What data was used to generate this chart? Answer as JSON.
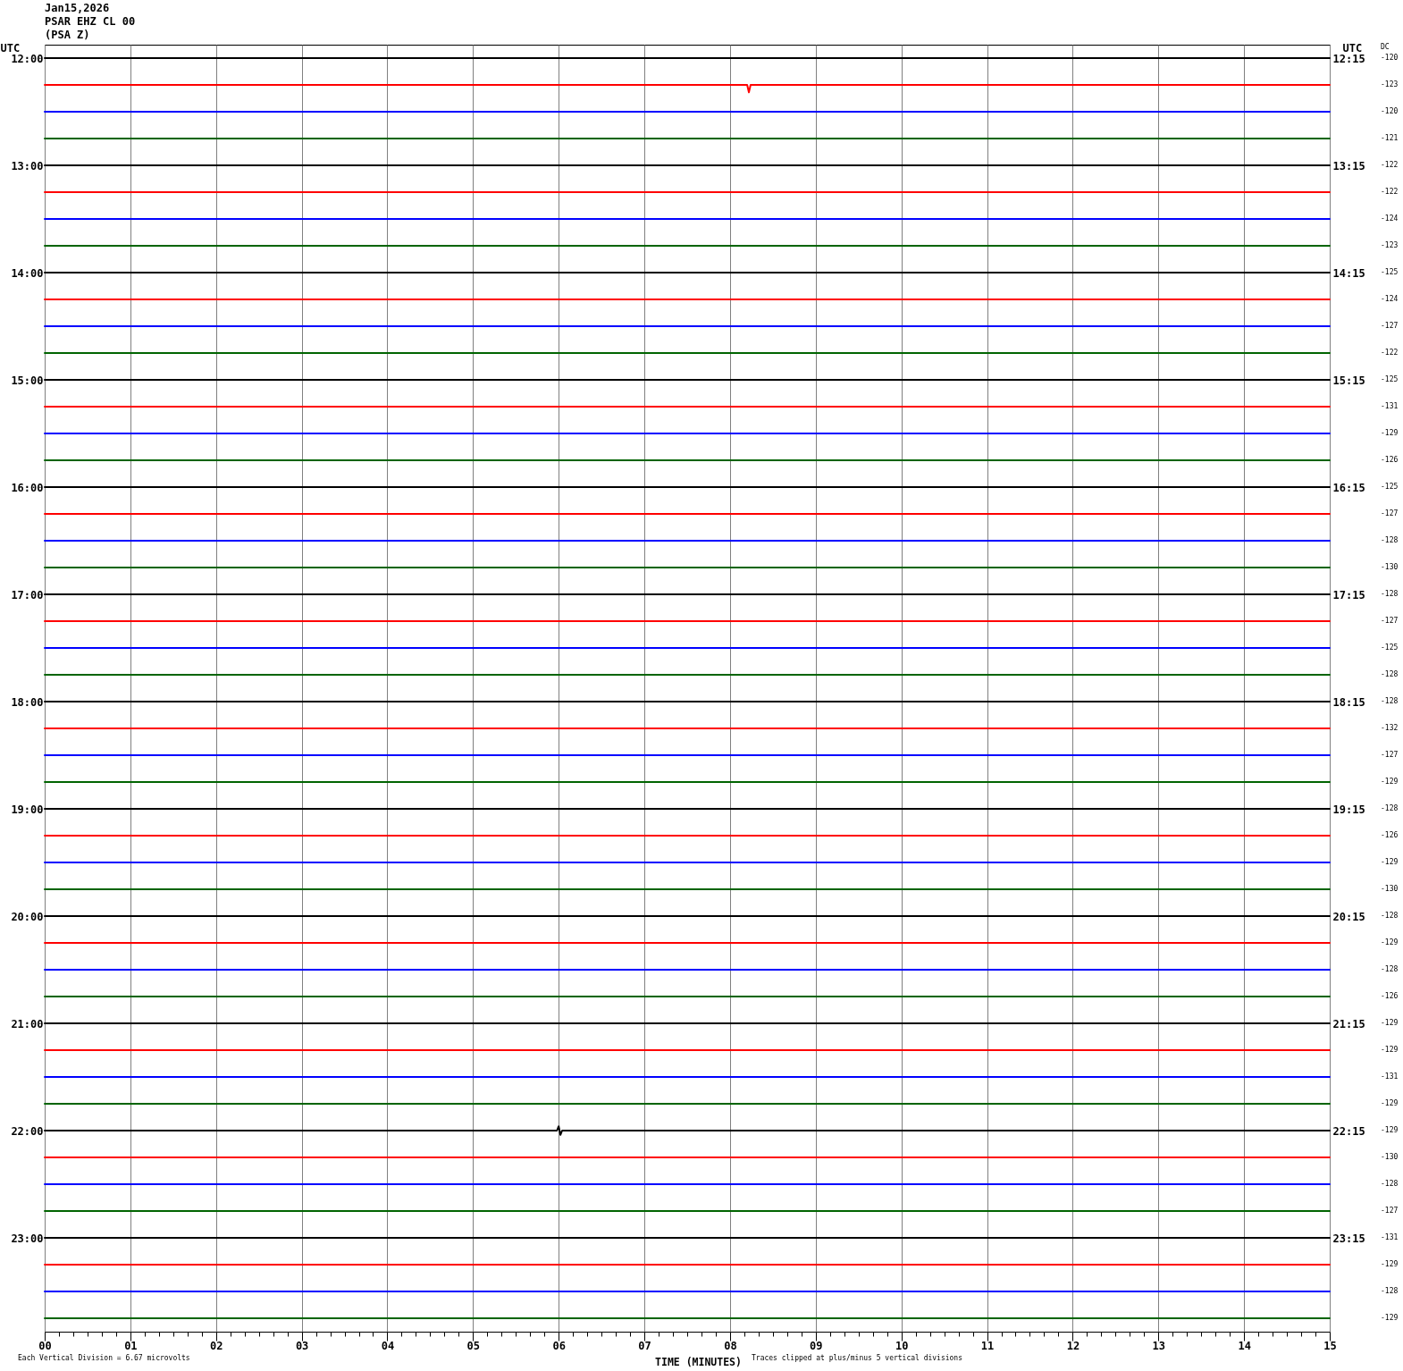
{
  "chart_data": {
    "type": "line",
    "title": "Jan15,2026",
    "subtitle": "PSAR EHZ CL 00\n(PSA Z)",
    "xlabel": "TIME (MINUTES)",
    "ylabel": "UTC",
    "y2label": "UTC",
    "annotations": [
      "DC",
      "-120",
      "-123",
      "-120",
      "-121",
      "-122",
      "-122",
      "-124",
      "-123",
      "-125",
      "-124",
      "-127",
      "-122",
      "-125",
      "-131",
      "-129",
      "-126",
      "-125",
      "-127",
      "-128",
      "-130",
      "-128",
      "-127",
      "-125",
      "-128",
      "-128",
      "-132",
      "-127",
      "-129",
      "-128",
      "-126",
      "-129",
      "-130",
      "-128",
      "-129",
      "-128",
      "-126",
      "-129",
      "-129",
      "-131",
      "-129",
      "-129",
      "-130",
      "-128",
      "-127",
      "-131",
      "-129",
      "-128",
      "-129",
      "Each Vertical Division = 6.67 microvolts",
      "Traces clipped at plus/minus 5 vertical divisions"
    ],
    "grid": "x",
    "x": [
      0,
      15
    ],
    "xlim": [
      0,
      15
    ],
    "xticks": [
      {
        "value": 0,
        "label": "00"
      },
      {
        "value": 0.1667,
        "label": null
      },
      {
        "value": 0.3333,
        "label": null
      },
      {
        "value": 0.5,
        "label": null
      },
      {
        "value": 0.6667,
        "label": null
      },
      {
        "value": 0.8333,
        "label": null
      },
      {
        "value": 1,
        "label": "01"
      },
      {
        "value": 1.1667,
        "label": null
      },
      {
        "value": 1.3333,
        "label": null
      },
      {
        "value": 1.5,
        "label": null
      },
      {
        "value": 1.6667,
        "label": null
      },
      {
        "value": 1.8333,
        "label": null
      },
      {
        "value": 2,
        "label": "02"
      },
      {
        "value": 2.1667,
        "label": null
      },
      {
        "value": 2.3333,
        "label": null
      },
      {
        "value": 2.5,
        "label": null
      },
      {
        "value": 2.6667,
        "label": null
      },
      {
        "value": 2.8333,
        "label": null
      },
      {
        "value": 3,
        "label": "03"
      },
      {
        "value": 3.1667,
        "label": null
      },
      {
        "value": 3.3333,
        "label": null
      },
      {
        "value": 3.5,
        "label": null
      },
      {
        "value": 3.6667,
        "label": null
      },
      {
        "value": 3.8333,
        "label": null
      },
      {
        "value": 4,
        "label": "04"
      },
      {
        "value": 4.1667,
        "label": null
      },
      {
        "value": 4.3333,
        "label": null
      },
      {
        "value": 4.5,
        "label": null
      },
      {
        "value": 4.6667,
        "label": null
      },
      {
        "value": 4.8333,
        "label": null
      },
      {
        "value": 5,
        "label": "05"
      },
      {
        "value": 5.1667,
        "label": null
      },
      {
        "value": 5.3333,
        "label": null
      },
      {
        "value": 5.5,
        "label": null
      },
      {
        "value": 5.6667,
        "label": null
      },
      {
        "value": 5.8333,
        "label": null
      },
      {
        "value": 6,
        "label": "06"
      },
      {
        "value": 6.1667,
        "label": null
      },
      {
        "value": 6.3333,
        "label": null
      },
      {
        "value": 6.5,
        "label": null
      },
      {
        "value": 6.6667,
        "label": null
      },
      {
        "value": 6.8333,
        "label": null
      },
      {
        "value": 7,
        "label": "07"
      },
      {
        "value": 7.1667,
        "label": null
      },
      {
        "value": 7.3333,
        "label": null
      },
      {
        "value": 7.5,
        "label": null
      },
      {
        "value": 7.6667,
        "label": null
      },
      {
        "value": 7.8333,
        "label": null
      },
      {
        "value": 8,
        "label": "08"
      },
      {
        "value": 8.1667,
        "label": null
      },
      {
        "value": 8.3333,
        "label": null
      },
      {
        "value": 8.5,
        "label": null
      },
      {
        "value": 8.6667,
        "label": null
      },
      {
        "value": 8.8333,
        "label": null
      },
      {
        "value": 9,
        "label": "09"
      },
      {
        "value": 9.1667,
        "label": null
      },
      {
        "value": 9.3333,
        "label": null
      },
      {
        "value": 9.5,
        "label": null
      },
      {
        "value": 9.6667,
        "label": null
      },
      {
        "value": 9.8333,
        "label": null
      },
      10,
      {
        "value": 10.1667,
        "label": null
      },
      {
        "value": 10.3333,
        "label": null
      },
      {
        "value": 10.5,
        "label": null
      },
      {
        "value": 10.6667,
        "label": null
      },
      {
        "value": 10.8333,
        "label": null
      },
      11,
      {
        "value": 11.1667,
        "label": null
      },
      {
        "value": 11.3333,
        "label": null
      },
      {
        "value": 11.5,
        "label": null
      },
      {
        "value": 11.6667,
        "label": null
      },
      {
        "value": 11.8333,
        "label": null
      },
      12,
      {
        "value": 12.1667,
        "label": null
      },
      {
        "value": 12.3333,
        "label": null
      },
      {
        "value": 12.5,
        "label": null
      },
      {
        "value": 12.6667,
        "label": null
      },
      {
        "value": 12.8333,
        "label": null
      },
      13,
      {
        "value": 13.1667,
        "label": null
      },
      {
        "value": 13.3333,
        "label": null
      },
      {
        "value": 13.5,
        "label": null
      },
      {
        "value": 13.6667,
        "label": null
      },
      {
        "value": 13.8333,
        "label": null
      },
      14,
      {
        "value": 14.1667,
        "label": null
      },
      {
        "value": 14.3333,
        "label": null
      },
      {
        "value": 14.5,
        "label": null
      },
      {
        "value": 14.6667,
        "label": null
      },
      {
        "value": 14.8333,
        "label": null
      },
      15
    ],
    "ylim": [
      23.875,
      11.875
    ],
    "yticks": [
      {
        "value": 12,
        "label": "12:00"
      },
      {
        "value": 13,
        "label": "13:00"
      },
      {
        "value": 14,
        "label": "14:00"
      },
      {
        "value": 15,
        "label": "15:00"
      },
      {
        "value": 16,
        "label": "16:00"
      },
      {
        "value": 17,
        "label": "17:00"
      },
      {
        "value": 18,
        "label": "18:00"
      },
      {
        "value": 19,
        "label": "19:00"
      },
      {
        "value": 20,
        "label": "20:00"
      },
      {
        "value": 21,
        "label": "21:00"
      },
      {
        "value": 22,
        "label": "22:00"
      },
      {
        "value": 23,
        "label": "23:00"
      }
    ],
    "y2lim": [
      24.125,
      12.125
    ],
    "y2ticks": [
      {
        "value": 12.25,
        "label": "12:15"
      },
      {
        "value": 13.25,
        "label": "13:15"
      },
      {
        "value": 14.25,
        "label": "14:15"
      },
      {
        "value": 15.25,
        "label": "15:15"
      },
      {
        "value": 16.25,
        "label": "16:15"
      },
      {
        "value": 17.25,
        "label": "17:15"
      },
      {
        "value": 18.25,
        "label": "18:15"
      },
      {
        "value": 19.25,
        "label": "19:15"
      },
      {
        "value": 20.25,
        "label": "20:15"
      },
      {
        "value": 21.25,
        "label": "21:15"
      },
      {
        "value": 22.25,
        "label": "22:15"
      },
      {
        "value": 23.25,
        "label": "23:15"
      }
    ],
    "series": [
      {
        "color": "#000000",
        "values": [
          12,
          12
        ]
      },
      {
        "color": "#ff0000",
        "x": [
          0,
          8.2,
          8.22,
          8.24,
          15
        ],
        "values": [
          12.25,
          12.25,
          12.32,
          12.25,
          12.25
        ]
      },
      {
        "color": "#0000ff",
        "values": [
          12.5,
          12.5
        ]
      },
      {
        "color": "#006400",
        "values": [
          12.75,
          12.75
        ]
      },
      {
        "color": "#000000",
        "values": [
          13,
          13
        ]
      },
      {
        "color": "#ff0000",
        "values": [
          13.25,
          13.25
        ]
      },
      {
        "color": "#0000ff",
        "values": [
          13.5,
          13.5
        ]
      },
      {
        "color": "#006400",
        "values": [
          13.75,
          13.75
        ]
      },
      {
        "color": "#000000",
        "values": [
          14,
          14
        ]
      },
      {
        "color": "#ff0000",
        "values": [
          14.25,
          14.25
        ]
      },
      {
        "color": "#0000ff",
        "values": [
          14.5,
          14.5
        ]
      },
      {
        "color": "#006400",
        "values": [
          14.75,
          14.75
        ]
      },
      {
        "color": "#000000",
        "values": [
          15,
          15
        ]
      },
      {
        "color": "#ff0000",
        "values": [
          15.25,
          15.25
        ]
      },
      {
        "color": "#0000ff",
        "values": [
          15.5,
          15.5
        ]
      },
      {
        "color": "#006400",
        "values": [
          15.75,
          15.75
        ]
      },
      {
        "color": "#000000",
        "values": [
          16,
          16
        ]
      },
      {
        "color": "#ff0000",
        "values": [
          16.25,
          16.25
        ]
      },
      {
        "color": "#0000ff",
        "values": [
          16.5,
          16.5
        ]
      },
      {
        "color": "#006400",
        "values": [
          16.75,
          16.75
        ]
      },
      {
        "color": "#000000",
        "values": [
          17,
          17
        ]
      },
      {
        "color": "#ff0000",
        "values": [
          17.25,
          17.25
        ]
      },
      {
        "color": "#0000ff",
        "values": [
          17.5,
          17.5
        ]
      },
      {
        "color": "#006400",
        "values": [
          17.75,
          17.75
        ]
      },
      {
        "color": "#000000",
        "values": [
          18,
          18
        ]
      },
      {
        "color": "#ff0000",
        "values": [
          18.25,
          18.25
        ]
      },
      {
        "color": "#0000ff",
        "values": [
          18.5,
          18.5
        ]
      },
      {
        "color": "#006400",
        "values": [
          18.75,
          18.75
        ]
      },
      {
        "color": "#000000",
        "values": [
          19,
          19
        ]
      },
      {
        "color": "#ff0000",
        "values": [
          19.25,
          19.25
        ]
      },
      {
        "color": "#0000ff",
        "values": [
          19.5,
          19.5
        ]
      },
      {
        "color": "#006400",
        "values": [
          19.75,
          19.75
        ]
      },
      {
        "color": "#000000",
        "values": [
          20,
          20
        ]
      },
      {
        "color": "#ff0000",
        "values": [
          20.25,
          20.25
        ]
      },
      {
        "color": "#0000ff",
        "values": [
          20.5,
          20.5
        ]
      },
      {
        "color": "#006400",
        "values": [
          20.75,
          20.75
        ]
      },
      {
        "color": "#000000",
        "values": [
          21,
          21
        ]
      },
      {
        "color": "#ff0000",
        "values": [
          21.25,
          21.25
        ]
      },
      {
        "color": "#0000ff",
        "values": [
          21.5,
          21.5
        ]
      },
      {
        "color": "#006400",
        "values": [
          21.75,
          21.75
        ]
      },
      {
        "color": "#000000",
        "x": [
          0,
          5.98,
          6,
          6.02,
          6.04,
          15
        ],
        "values": [
          22,
          22,
          21.96,
          22.04,
          22,
          22
        ]
      },
      {
        "color": "#ff0000",
        "values": [
          22.25,
          22.25
        ]
      },
      {
        "color": "#0000ff",
        "values": [
          22.5,
          22.5
        ]
      },
      {
        "color": "#006400",
        "values": [
          22.75,
          22.75
        ]
      },
      {
        "color": "#000000",
        "values": [
          23,
          23
        ]
      },
      {
        "color": "#ff0000",
        "values": [
          23.25,
          23.25
        ]
      },
      {
        "color": "#0000ff",
        "values": [
          23.5,
          23.5
        ]
      },
      {
        "color": "#006400",
        "values": [
          23.75,
          23.75
        ]
      }
    ]
  }
}
